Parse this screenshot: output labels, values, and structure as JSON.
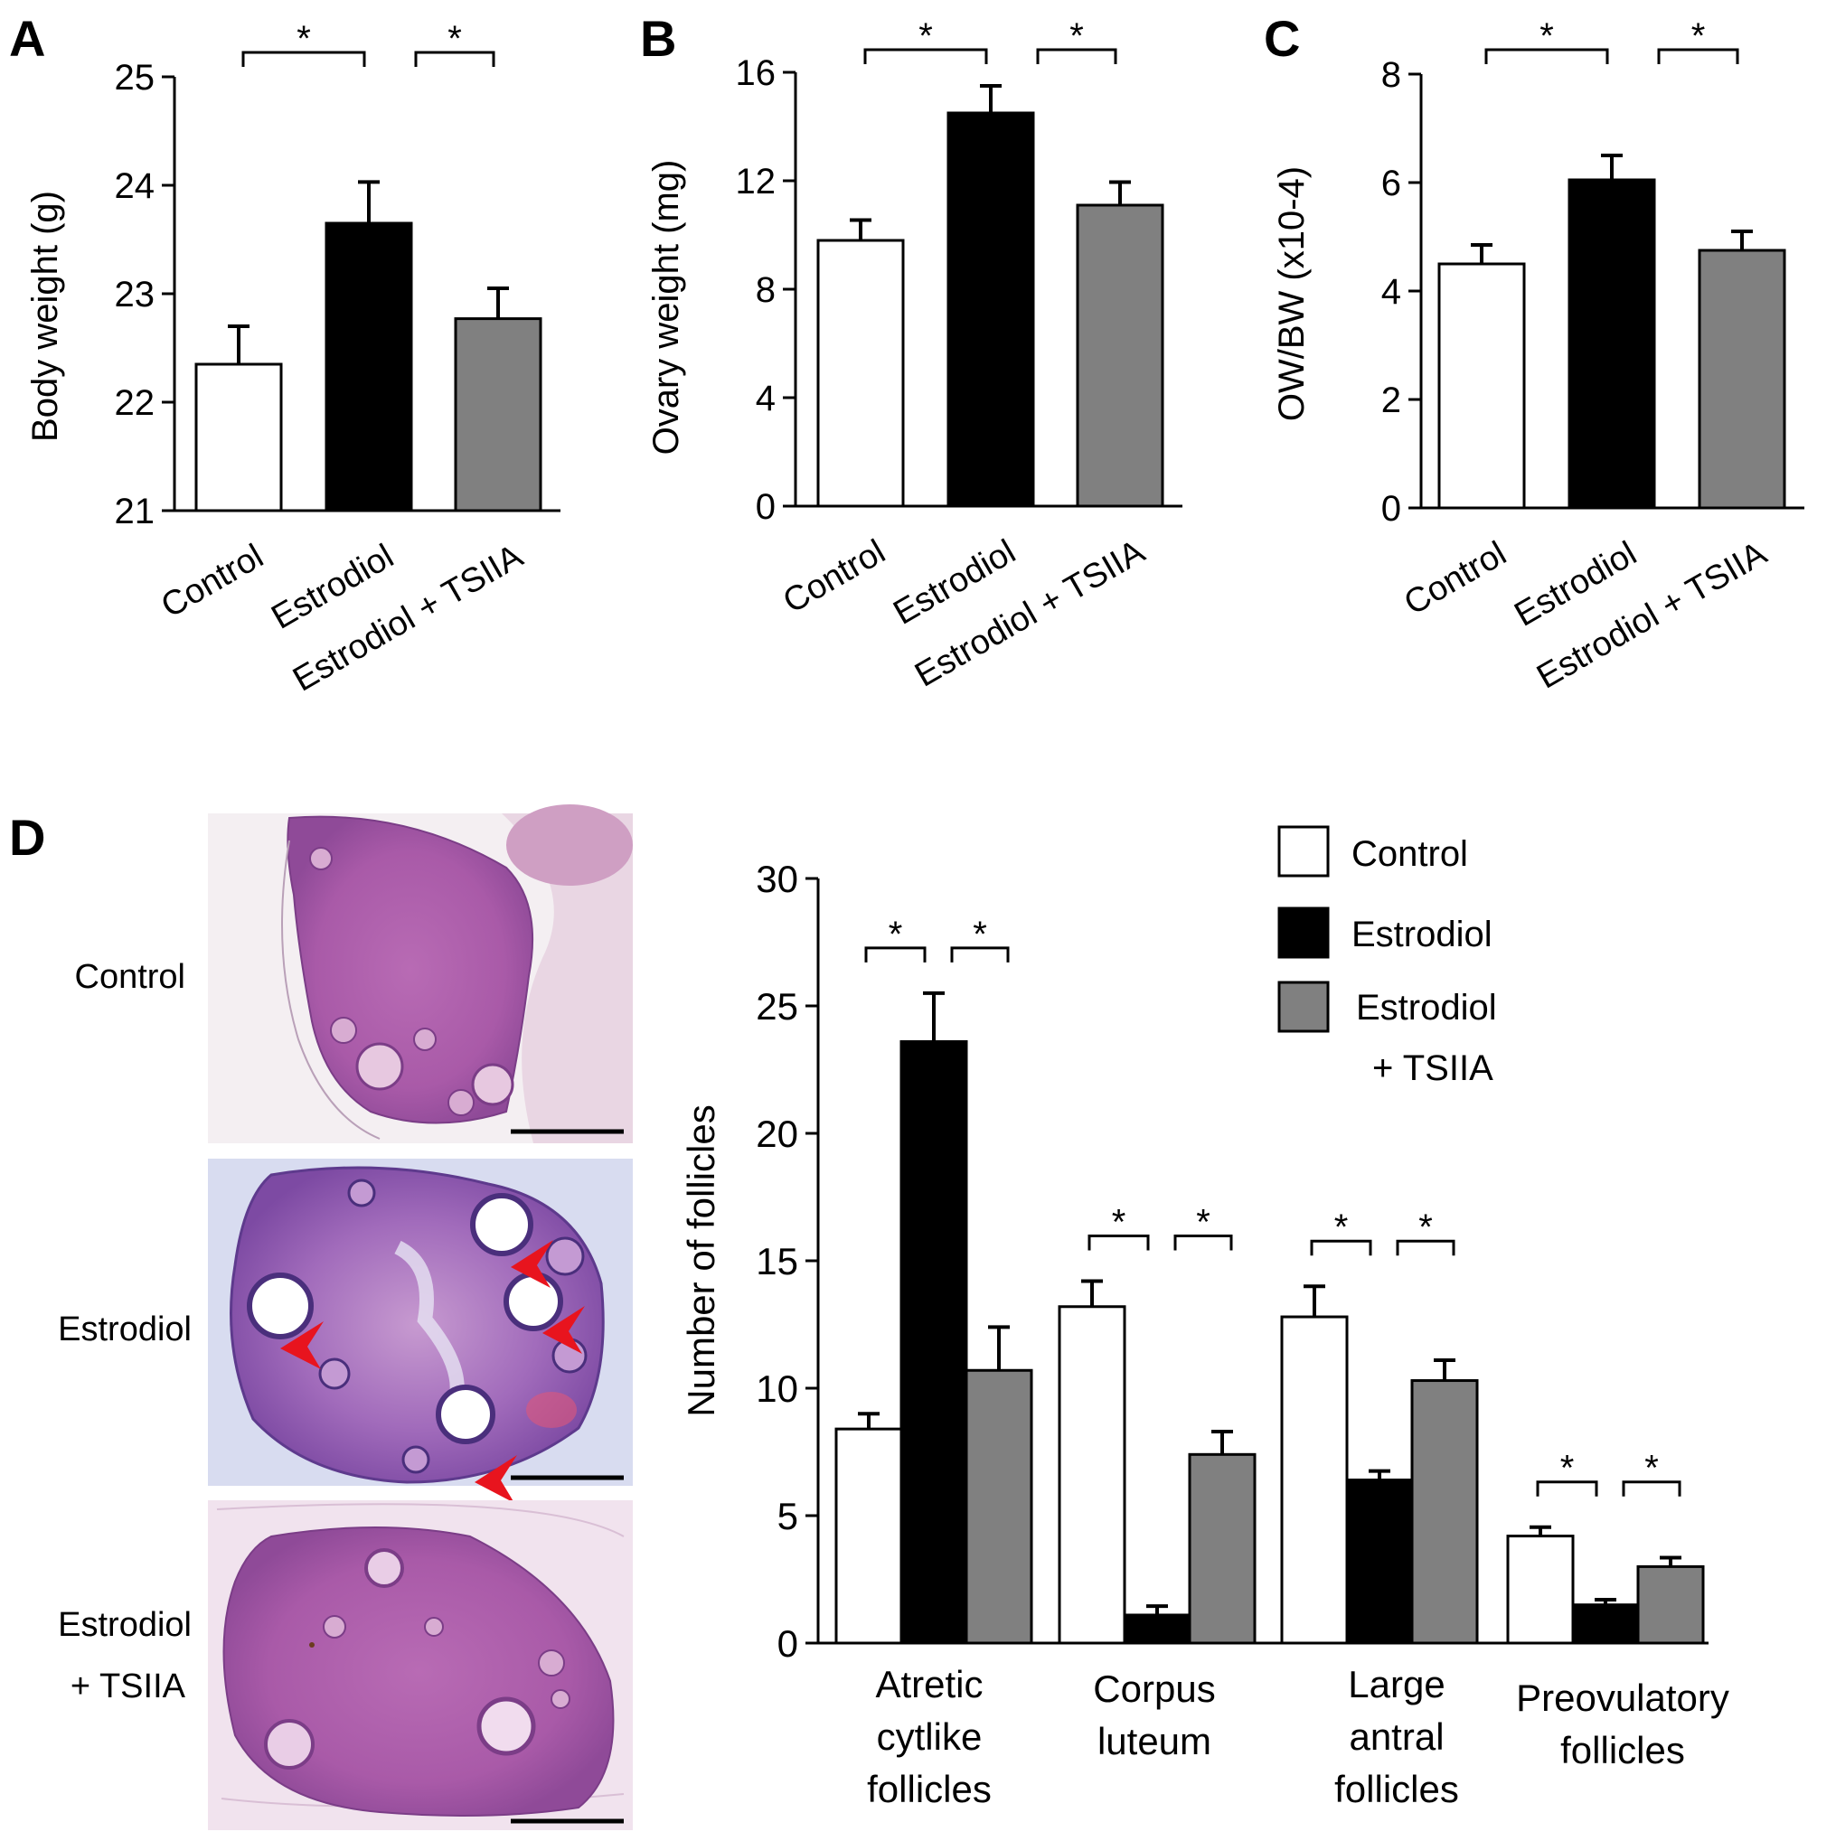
{
  "panel_labels": [
    "A",
    "B",
    "C",
    "D"
  ],
  "significance_marker": "*",
  "colors": {
    "control": "#ffffff",
    "estrodiol": "#000000",
    "estrodiol_tsiia": "#808080",
    "arrow": "#e8141e"
  },
  "chart_data": [
    {
      "panel": "A",
      "type": "bar",
      "categories": [
        "Control",
        "Estrodiol",
        "Estrodiol + TSIIA"
      ],
      "values": [
        22.35,
        23.65,
        22.77
      ],
      "errors": [
        0.35,
        0.38,
        0.28
      ],
      "ylabel": "Body weight (g)",
      "ylim": [
        21,
        25
      ],
      "yticks": [
        "21",
        "22",
        "23",
        "24",
        "25"
      ],
      "significance": [
        "*",
        "*"
      ]
    },
    {
      "panel": "B",
      "type": "bar",
      "categories": [
        "Control",
        "Estrodiol",
        "Estrodiol + TSIIA"
      ],
      "values": [
        9.8,
        14.5,
        11.1
      ],
      "errors": [
        0.75,
        1.0,
        0.85
      ],
      "ylabel": "Ovary weight (mg)",
      "ylim": [
        0,
        16
      ],
      "yticks": [
        "0",
        "4",
        "8",
        "12",
        "16"
      ],
      "significance": [
        "*",
        "*"
      ]
    },
    {
      "panel": "C",
      "type": "bar",
      "categories": [
        "Control",
        "Estrodiol",
        "Estrodiol + TSIIA"
      ],
      "values": [
        4.5,
        6.05,
        4.75
      ],
      "errors": [
        0.35,
        0.45,
        0.35
      ],
      "ylabel": "OW/BW (x10-4)",
      "ylim": [
        0,
        8
      ],
      "yticks": [
        "0",
        "2",
        "4",
        "6",
        "8"
      ],
      "significance": [
        "*",
        "*"
      ]
    },
    {
      "panel": "D",
      "type": "bar",
      "categories": [
        [
          "Atretic",
          "cytlike",
          "follicles"
        ],
        [
          "Corpus",
          "luteum"
        ],
        [
          "Large",
          "antral",
          "follicles"
        ],
        [
          "Preovulatory",
          "follicles"
        ]
      ],
      "series": [
        {
          "name": "Control",
          "values": [
            8.4,
            13.2,
            12.8,
            4.2
          ],
          "errors": [
            0.6,
            1.0,
            1.2,
            0.35
          ]
        },
        {
          "name": "Estrodiol",
          "values": [
            23.6,
            1.1,
            6.4,
            1.5
          ],
          "errors": [
            1.9,
            0.35,
            0.35,
            0.2
          ]
        },
        {
          "name": "Estrodiol\n+ TSIIA",
          "values": [
            10.7,
            7.4,
            10.3,
            3.0
          ],
          "errors": [
            1.7,
            0.9,
            0.8,
            0.35
          ]
        }
      ],
      "legend": [
        "Control",
        "Estrodiol",
        "Estrodiol",
        "+ TSIIA"
      ],
      "ylabel": "Number of follicles",
      "ylim": [
        0,
        30
      ],
      "yticks": [
        "0",
        "5",
        "10",
        "15",
        "20",
        "25",
        "30"
      ],
      "significance": [
        "*",
        "*"
      ]
    }
  ],
  "micrographs": {
    "labels": [
      [
        "Control"
      ],
      [
        "Estrodiol"
      ],
      [
        "Estrodiol",
        "+ TSIIA"
      ]
    ],
    "stain": "H&E",
    "arrows_count": 4
  }
}
